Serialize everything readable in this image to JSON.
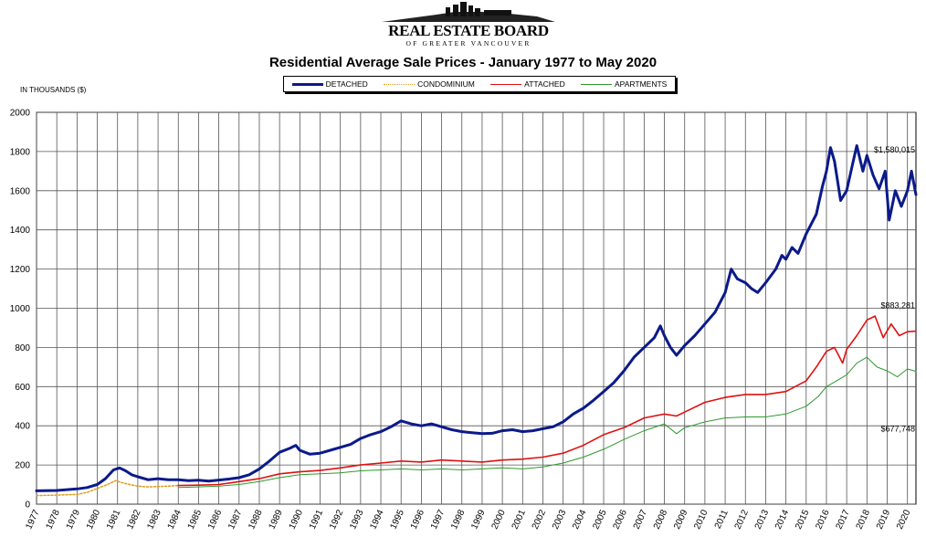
{
  "header": {
    "logo_name": "REAL ESTATE BOARD",
    "logo_sub": "OF GREATER VANCOUVER"
  },
  "unit_label": "IN THOUSANDS ($)",
  "chart_data": {
    "type": "line",
    "title": "Residential Average Sale Prices  -  January 1977 to May 2020",
    "xlabel": "",
    "ylabel": "",
    "xlim": [
      1977,
      2020.42
    ],
    "ylim": [
      0,
      2000
    ],
    "yticks": [
      0,
      200,
      400,
      600,
      800,
      1000,
      1200,
      1400,
      1600,
      1800,
      2000
    ],
    "xticks": [
      "1977",
      "1978",
      "1979",
      "1980",
      "1981",
      "1982",
      "1983",
      "1984",
      "1985",
      "1986",
      "1987",
      "1988",
      "1989",
      "1990",
      "1991",
      "1992",
      "1993",
      "1994",
      "1995",
      "1996",
      "1997",
      "1998",
      "1999",
      "2000",
      "2001",
      "2002",
      "2003",
      "2004",
      "2005",
      "2006",
      "2007",
      "2008",
      "2009",
      "2010",
      "2011",
      "2012",
      "2013",
      "2014",
      "2015",
      "2016",
      "2017",
      "2018",
      "2019",
      "2020"
    ],
    "grid": true,
    "legend_position": "top-center",
    "series": [
      {
        "name": "DETACHED",
        "color": "#0b1a8a",
        "style": "solid-thick",
        "points": [
          [
            1977,
            68
          ],
          [
            1978,
            70
          ],
          [
            1979,
            78
          ],
          [
            1979.5,
            85
          ],
          [
            1980,
            100
          ],
          [
            1980.4,
            130
          ],
          [
            1980.8,
            175
          ],
          [
            1981.1,
            185
          ],
          [
            1981.4,
            170
          ],
          [
            1981.7,
            150
          ],
          [
            1982,
            140
          ],
          [
            1982.5,
            125
          ],
          [
            1983,
            130
          ],
          [
            1983.5,
            125
          ],
          [
            1984,
            125
          ],
          [
            1984.5,
            120
          ],
          [
            1985,
            122
          ],
          [
            1985.5,
            118
          ],
          [
            1986,
            123
          ],
          [
            1986.5,
            128
          ],
          [
            1987,
            135
          ],
          [
            1987.5,
            150
          ],
          [
            1988,
            180
          ],
          [
            1988.5,
            220
          ],
          [
            1989,
            265
          ],
          [
            1989.5,
            285
          ],
          [
            1989.8,
            300
          ],
          [
            1990,
            275
          ],
          [
            1990.5,
            255
          ],
          [
            1991,
            260
          ],
          [
            1991.5,
            275
          ],
          [
            1992,
            290
          ],
          [
            1992.5,
            305
          ],
          [
            1993,
            335
          ],
          [
            1993.5,
            355
          ],
          [
            1994,
            370
          ],
          [
            1994.5,
            395
          ],
          [
            1995,
            425
          ],
          [
            1995.5,
            410
          ],
          [
            1996,
            400
          ],
          [
            1996.5,
            410
          ],
          [
            1997,
            395
          ],
          [
            1997.5,
            380
          ],
          [
            1998,
            370
          ],
          [
            1998.5,
            365
          ],
          [
            1999,
            360
          ],
          [
            1999.5,
            362
          ],
          [
            2000,
            375
          ],
          [
            2000.5,
            380
          ],
          [
            2001,
            370
          ],
          [
            2001.5,
            375
          ],
          [
            2002,
            385
          ],
          [
            2002.5,
            395
          ],
          [
            2003,
            420
          ],
          [
            2003.5,
            460
          ],
          [
            2004,
            490
          ],
          [
            2004.5,
            530
          ],
          [
            2005,
            575
          ],
          [
            2005.5,
            620
          ],
          [
            2006,
            680
          ],
          [
            2006.5,
            750
          ],
          [
            2007,
            800
          ],
          [
            2007.5,
            850
          ],
          [
            2007.8,
            910
          ],
          [
            2008,
            860
          ],
          [
            2008.3,
            800
          ],
          [
            2008.6,
            760
          ],
          [
            2009,
            810
          ],
          [
            2009.5,
            860
          ],
          [
            2010,
            920
          ],
          [
            2010.5,
            980
          ],
          [
            2011,
            1080
          ],
          [
            2011.3,
            1200
          ],
          [
            2011.6,
            1150
          ],
          [
            2012,
            1130
          ],
          [
            2012.3,
            1100
          ],
          [
            2012.6,
            1080
          ],
          [
            2013,
            1130
          ],
          [
            2013.5,
            1200
          ],
          [
            2013.8,
            1270
          ],
          [
            2014,
            1250
          ],
          [
            2014.3,
            1310
          ],
          [
            2014.6,
            1280
          ],
          [
            2015,
            1380
          ],
          [
            2015.5,
            1480
          ],
          [
            2015.8,
            1620
          ],
          [
            2016,
            1700
          ],
          [
            2016.2,
            1820
          ],
          [
            2016.4,
            1750
          ],
          [
            2016.7,
            1550
          ],
          [
            2017,
            1600
          ],
          [
            2017.3,
            1740
          ],
          [
            2017.5,
            1830
          ],
          [
            2017.8,
            1700
          ],
          [
            2018,
            1780
          ],
          [
            2018.3,
            1680
          ],
          [
            2018.6,
            1610
          ],
          [
            2018.9,
            1700
          ],
          [
            2019.1,
            1450
          ],
          [
            2019.4,
            1600
          ],
          [
            2019.7,
            1520
          ],
          [
            2020,
            1600
          ],
          [
            2020.2,
            1700
          ],
          [
            2020.42,
            1580
          ]
        ]
      },
      {
        "name": "CONDOMINIUM",
        "color": "#e09a1a",
        "style": "dotted",
        "points": [
          [
            1977,
            44
          ],
          [
            1978,
            46
          ],
          [
            1979,
            50
          ],
          [
            1979.5,
            60
          ],
          [
            1980,
            80
          ],
          [
            1980.5,
            100
          ],
          [
            1980.9,
            120
          ],
          [
            1981.2,
            110
          ],
          [
            1981.6,
            100
          ],
          [
            1982,
            92
          ],
          [
            1982.5,
            88
          ],
          [
            1983,
            90
          ],
          [
            1983.5,
            92
          ],
          [
            1984,
            95
          ]
        ]
      },
      {
        "name": "ATTACHED",
        "color": "#e01010",
        "style": "solid",
        "points": [
          [
            1984,
            95
          ],
          [
            1985,
            97
          ],
          [
            1986,
            100
          ],
          [
            1987,
            115
          ],
          [
            1988,
            130
          ],
          [
            1989,
            155
          ],
          [
            1990,
            165
          ],
          [
            1991,
            172
          ],
          [
            1992,
            185
          ],
          [
            1993,
            200
          ],
          [
            1994,
            210
          ],
          [
            1995,
            220
          ],
          [
            1996,
            215
          ],
          [
            1997,
            225
          ],
          [
            1998,
            220
          ],
          [
            1999,
            215
          ],
          [
            2000,
            225
          ],
          [
            2001,
            230
          ],
          [
            2002,
            240
          ],
          [
            2003,
            260
          ],
          [
            2004,
            300
          ],
          [
            2005,
            355
          ],
          [
            2006,
            390
          ],
          [
            2007,
            440
          ],
          [
            2008,
            460
          ],
          [
            2008.6,
            450
          ],
          [
            2009,
            470
          ],
          [
            2010,
            520
          ],
          [
            2011,
            545
          ],
          [
            2012,
            560
          ],
          [
            2013,
            560
          ],
          [
            2014,
            575
          ],
          [
            2015,
            630
          ],
          [
            2015.5,
            700
          ],
          [
            2016,
            780
          ],
          [
            2016.4,
            800
          ],
          [
            2016.8,
            720
          ],
          [
            2017,
            790
          ],
          [
            2017.5,
            860
          ],
          [
            2018,
            940
          ],
          [
            2018.4,
            960
          ],
          [
            2018.8,
            850
          ],
          [
            2019.2,
            920
          ],
          [
            2019.6,
            860
          ],
          [
            2020,
            880
          ],
          [
            2020.42,
            883
          ]
        ]
      },
      {
        "name": "APARTMENTS",
        "color": "#2e9a2e",
        "style": "solid-thin",
        "points": [
          [
            1984,
            85
          ],
          [
            1985,
            88
          ],
          [
            1986,
            92
          ],
          [
            1987,
            100
          ],
          [
            1988,
            115
          ],
          [
            1989,
            135
          ],
          [
            1990,
            150
          ],
          [
            1991,
            155
          ],
          [
            1992,
            160
          ],
          [
            1993,
            170
          ],
          [
            1994,
            175
          ],
          [
            1995,
            180
          ],
          [
            1996,
            175
          ],
          [
            1997,
            180
          ],
          [
            1998,
            175
          ],
          [
            1999,
            180
          ],
          [
            2000,
            185
          ],
          [
            2001,
            180
          ],
          [
            2002,
            190
          ],
          [
            2003,
            210
          ],
          [
            2004,
            240
          ],
          [
            2005,
            280
          ],
          [
            2006,
            330
          ],
          [
            2007,
            375
          ],
          [
            2008,
            410
          ],
          [
            2008.6,
            360
          ],
          [
            2009,
            390
          ],
          [
            2010,
            420
          ],
          [
            2011,
            440
          ],
          [
            2012,
            445
          ],
          [
            2013,
            445
          ],
          [
            2014,
            460
          ],
          [
            2015,
            500
          ],
          [
            2015.6,
            550
          ],
          [
            2016,
            600
          ],
          [
            2016.5,
            630
          ],
          [
            2017,
            660
          ],
          [
            2017.5,
            720
          ],
          [
            2018,
            750
          ],
          [
            2018.5,
            700
          ],
          [
            2019,
            680
          ],
          [
            2019.5,
            650
          ],
          [
            2020,
            690
          ],
          [
            2020.42,
            678
          ]
        ]
      }
    ],
    "annotations": [
      "$1,580,015",
      "$883,281",
      "$677,748"
    ]
  }
}
